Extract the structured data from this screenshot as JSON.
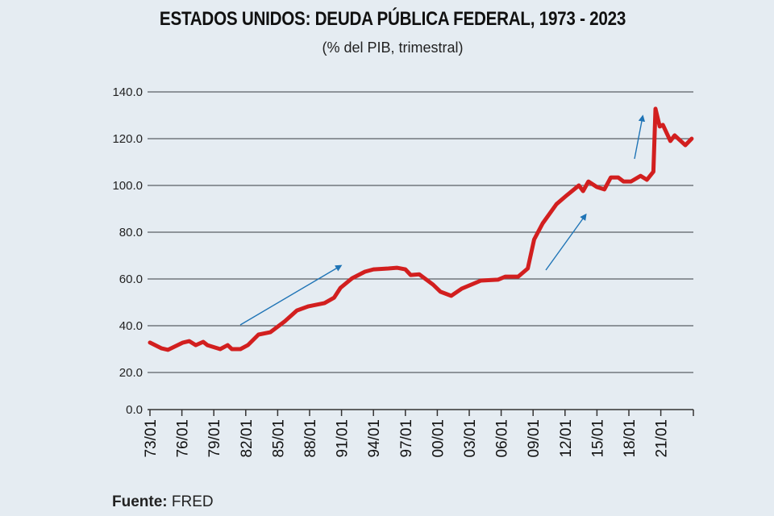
{
  "chart_data": {
    "type": "line",
    "title": "ESTADOS UNIDOS: DEUDA PÚBLICA FEDERAL, 1973 - 2023",
    "subtitle": "(% del PIB, trimestral)",
    "xlabel": "",
    "ylabel": "",
    "ylim": [
      0,
      140
    ],
    "xlim": [
      1973,
      2024
    ],
    "grid": true,
    "y_ticks": [
      "0.0",
      "20.0",
      "40.0",
      "60.0",
      "80.0",
      "100.0",
      "120.0",
      "140.0"
    ],
    "x_ticks": [
      "73/01",
      "76/01",
      "79/01",
      "82/01",
      "85/01",
      "88/01",
      "91/01",
      "94/01",
      "97/01",
      "00/01",
      "03/01",
      "06/01",
      "09/01",
      "12/01",
      "15/01",
      "18/01",
      "21/01"
    ],
    "series": [
      {
        "color": "#d21f1f",
        "x": [
          1973.0,
          1974.1,
          1974.7,
          1976.1,
          1976.7,
          1977.3,
          1978.0,
          1978.4,
          1979.6,
          1980.3,
          1980.7,
          1981.5,
          1982.2,
          1983.2,
          1984.3,
          1985.7,
          1986.8,
          1987.9,
          1989.4,
          1990.3,
          1990.9,
          1992.0,
          1993.2,
          1994.0,
          1995.4,
          1996.2,
          1997.0,
          1997.5,
          1998.3,
          1999.6,
          2000.3,
          2001.3,
          2002.3,
          2004.1,
          2005.7,
          2006.4,
          2007.6,
          2008.5,
          2009.1,
          2009.9,
          2011.2,
          2012.2,
          2013.3,
          2013.7,
          2014.2,
          2015.0,
          2015.7,
          2016.3,
          2017.0,
          2017.5,
          2018.2,
          2019.1,
          2019.7,
          2020.3,
          2020.5,
          2020.9,
          2021.2,
          2021.9,
          2022.3,
          2023.3,
          2023.9
        ],
        "values": [
          32.8,
          30.3,
          29.7,
          32.8,
          33.4,
          31.7,
          33.1,
          31.7,
          30.0,
          31.7,
          30.0,
          30.0,
          31.7,
          36.2,
          37.2,
          42.0,
          46.5,
          48.3,
          49.7,
          52.0,
          56.2,
          60.3,
          63.1,
          64.1,
          64.5,
          64.8,
          64.1,
          61.7,
          62.0,
          57.6,
          54.5,
          52.8,
          55.9,
          59.3,
          59.7,
          61.0,
          61.0,
          64.5,
          76.9,
          83.8,
          92.0,
          95.9,
          100.0,
          97.6,
          101.7,
          99.3,
          98.3,
          103.4,
          103.4,
          101.7,
          101.7,
          104.1,
          102.4,
          105.9,
          132.8,
          125.2,
          125.9,
          119.0,
          121.4,
          117.2,
          120.0
        ]
      }
    ],
    "annotation_color": "#1f74b6"
  },
  "header": {
    "title": "ESTADOS UNIDOS: DEUDA PÚBLICA FEDERAL, 1973 - 2023",
    "subtitle": "(% del PIB, trimestral)"
  },
  "footer": {
    "source_label": "Fuente:",
    "source_value": "FRED"
  }
}
